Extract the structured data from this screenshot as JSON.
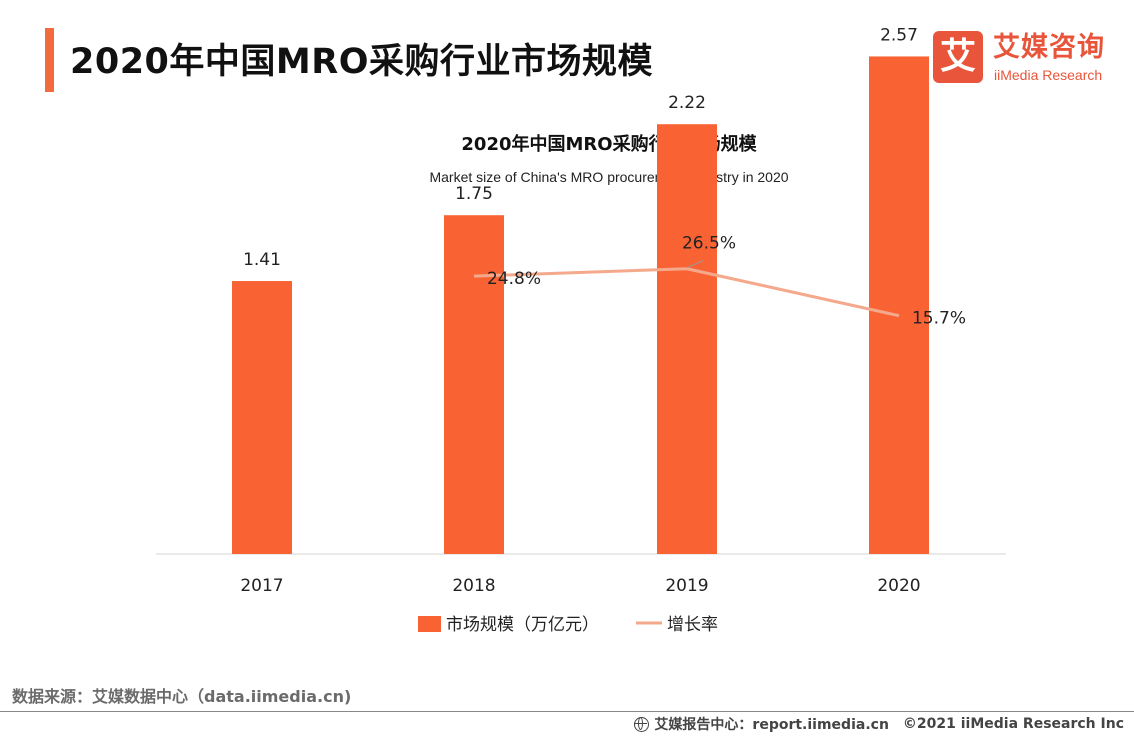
{
  "header": {
    "title": "2020年中国MRO采购行业市场规模",
    "accent_color": "#f26a3d"
  },
  "brand": {
    "mark": "艾",
    "name_zh": "艾媒咨询",
    "name_en": "iiMedia Research",
    "color": "#e8553a"
  },
  "chart_data": {
    "type": "bar",
    "title": "2020年中国MRO采购行业市场规模",
    "subtitle": "Market size of China's MRO procurement industry in 2020",
    "categories": [
      "2017",
      "2018",
      "2019",
      "2020"
    ],
    "series": [
      {
        "name": "市场规模（万亿元）",
        "type": "bar",
        "values": [
          1.41,
          1.75,
          2.22,
          2.57
        ],
        "labels": [
          "1.41",
          "1.75",
          "2.22",
          "2.57"
        ],
        "color": "#f96334"
      },
      {
        "name": "增长率",
        "type": "line",
        "values": [
          null,
          24.8,
          26.5,
          15.7
        ],
        "labels": [
          "",
          "24.8%",
          "26.5%",
          "15.7%"
        ],
        "color": "#f4a98c"
      }
    ],
    "bar_ylim": [
      0,
      2.8
    ],
    "line_ylim": [
      0,
      40
    ],
    "grid": false,
    "legend_position": "bottom"
  },
  "footer": {
    "source": "数据来源：艾媒数据中心（data.iimedia.cn)",
    "report_center": "艾媒报告中心：report.iimedia.cn",
    "copyright": "©2021  iiMedia Research  Inc"
  }
}
